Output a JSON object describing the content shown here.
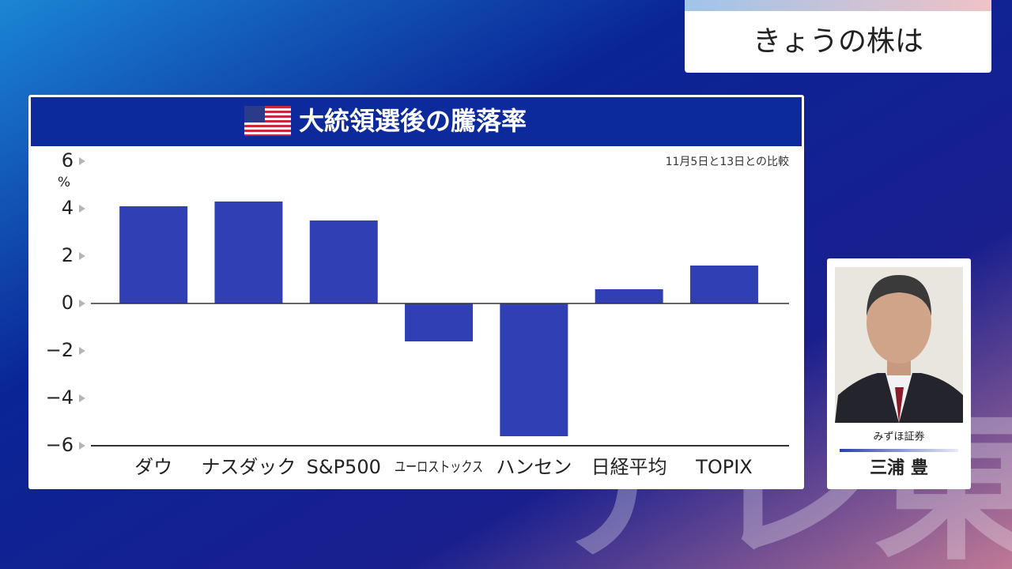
{
  "header": {
    "label": "きょうの株は"
  },
  "chart_data": {
    "type": "bar",
    "title": "大統領選後の騰落率",
    "subtitle": "11月5日と13日との比較",
    "y_unit": "%",
    "categories": [
      "ダウ",
      "ナスダック",
      "S&P500",
      "ユーロストックス",
      "ハンセン",
      "日経平均",
      "TOPIX"
    ],
    "values": [
      4.1,
      4.3,
      3.5,
      -1.6,
      -5.6,
      0.6,
      1.6
    ],
    "color": "#3040b4",
    "ylim": [
      -6,
      6
    ],
    "yticks": [
      {
        "value": -6,
        "label": "−6"
      },
      {
        "value": -4,
        "label": "−4"
      },
      {
        "value": -2,
        "label": "−2"
      },
      0,
      2,
      4,
      6
    ]
  },
  "commentator": {
    "company": "みずほ証券",
    "name": "三浦 豊"
  },
  "watermark": "テレ東"
}
